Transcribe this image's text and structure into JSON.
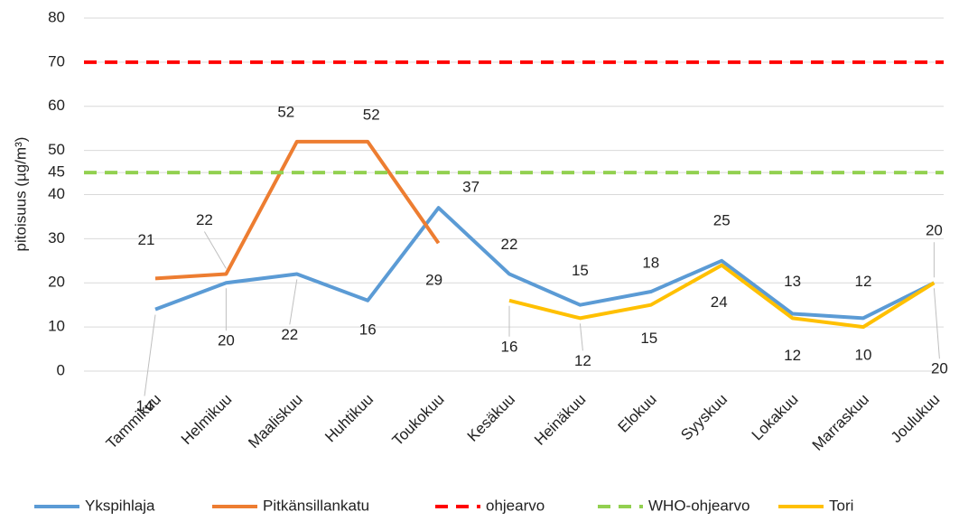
{
  "chart_data": {
    "type": "line",
    "y_label": "pitoisuus (µg/m³)",
    "categories": [
      "Tammikuu",
      "Helmikuu",
      "Maaliskuu",
      "Huhtikuu",
      "Toukokuu",
      "Kesäkuu",
      "Heinäkuu",
      "Elokuu",
      "Syyskuu",
      "Lokakuu",
      "Marraskuu",
      "Joulukuu"
    ],
    "series": [
      {
        "name": "Ykspihlaja",
        "color": "#5b9bd5",
        "values": [
          14,
          20,
          22,
          16,
          37,
          22,
          15,
          18,
          25,
          13,
          12,
          20
        ]
      },
      {
        "name": "Pitkänsillankatu",
        "color": "#ed7d31",
        "values": [
          21,
          22,
          52,
          52,
          29,
          null,
          null,
          null,
          null,
          null,
          null,
          null
        ]
      },
      {
        "name": "ohjearvo",
        "color": "#ff0000",
        "value": 70,
        "dashed": true
      },
      {
        "name": "WHO-ohjearvo",
        "color": "#92d050",
        "value": 45,
        "dashed": true
      },
      {
        "name": "Tori",
        "color": "#ffc000",
        "values": [
          null,
          null,
          null,
          null,
          null,
          16,
          12,
          15,
          24,
          12,
          10,
          20
        ]
      }
    ],
    "ylim": [
      0,
      80
    ],
    "yticks": [
      0,
      10,
      20,
      30,
      40,
      45,
      50,
      60,
      70,
      80
    ],
    "grid": true,
    "legend": "bottom"
  }
}
